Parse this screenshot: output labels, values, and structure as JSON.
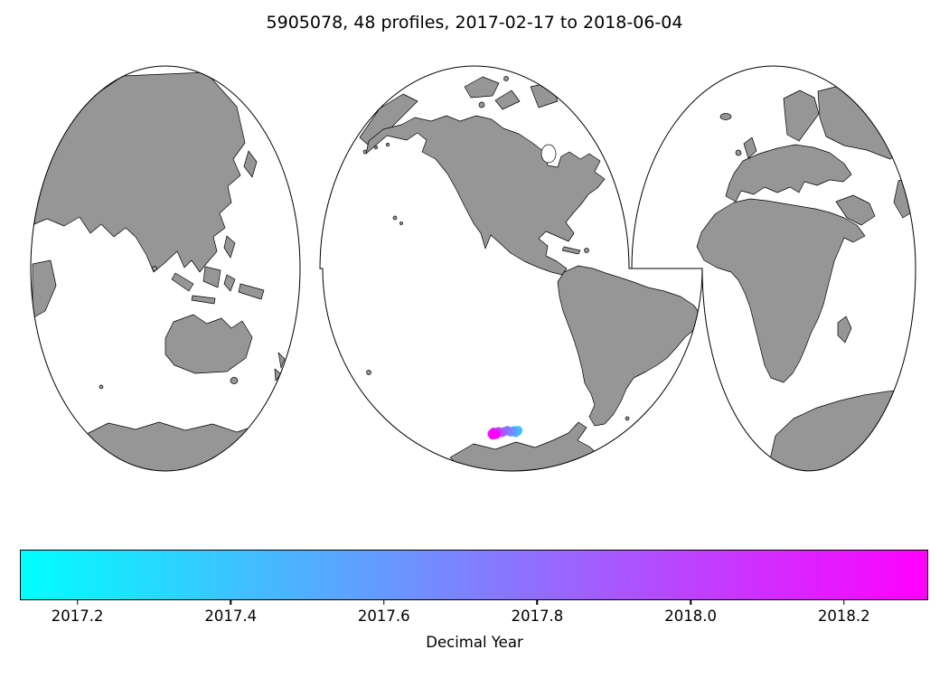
{
  "title": "5905078, 48 profiles, 2017-02-17 to 2018-06-04",
  "float": {
    "platform_id": "5905078",
    "profiles_count": "48",
    "date_start": "2017-02-17",
    "date_end": "2018-06-04"
  },
  "map": {
    "projection": "interrupted-mollweide-3-lobes",
    "land_color": "#969696",
    "coast_color": "#000000",
    "ocean_color": "#ffffff"
  },
  "colorbar": {
    "label": "Decimal Year",
    "colormap": "cool",
    "color_start": "#00ffff",
    "color_end": "#ff00ff",
    "tick_labels": [
      "2017.2",
      "2017.4",
      "2017.6",
      "2017.8",
      "2018.0",
      "2018.2"
    ]
  },
  "chart_data": {
    "type": "scatter",
    "title": "5905078, 48 profiles, 2017-02-17 to 2018-06-04",
    "colorbar_label": "Decimal Year",
    "colormap": "cool",
    "colorbar_ticks": [
      2017.2,
      2017.4,
      2017.6,
      2017.8,
      2018.0,
      2018.2
    ],
    "scale_range": [
      2017.125,
      2018.31
    ],
    "n_profiles": 48,
    "location_note": "All 48 profile positions form one tight cluster in the Southern Ocean west of the Antarctic Peninsula (approx. 63 S, 85 W); marker colors run cyan (early 2017) through blue-violet to magenta (mid 2018), with magenta (latest) points lying slightly west of the blue (earlier) points.",
    "points": [
      {
        "lon": -83.9,
        "lat": -62.95,
        "decimal_year": 2017.15
      },
      {
        "lon": -83.6,
        "lat": -62.85,
        "decimal_year": 2017.23
      },
      {
        "lon": -83.3,
        "lat": -62.95,
        "decimal_year": 2017.31
      },
      {
        "lon": -83.2,
        "lat": -62.85,
        "decimal_year": 2017.4
      },
      {
        "lon": -83.5,
        "lat": -63.05,
        "decimal_year": 2017.48
      },
      {
        "lon": -83.8,
        "lat": -62.9,
        "decimal_year": 2017.56
      },
      {
        "lon": -84.1,
        "lat": -63.0,
        "decimal_year": 2017.65
      },
      {
        "lon": -84.5,
        "lat": -62.85,
        "decimal_year": 2017.73
      },
      {
        "lon": -84.9,
        "lat": -62.95,
        "decimal_year": 2017.81
      },
      {
        "lon": -85.2,
        "lat": -63.05,
        "decimal_year": 2017.9
      },
      {
        "lon": -85.6,
        "lat": -62.95,
        "decimal_year": 2017.98
      },
      {
        "lon": -85.9,
        "lat": -63.1,
        "decimal_year": 2018.06
      },
      {
        "lon": -86.2,
        "lat": -63.0,
        "decimal_year": 2018.15
      },
      {
        "lon": -86.4,
        "lat": -63.15,
        "decimal_year": 2018.23
      },
      {
        "lon": -86.3,
        "lat": -63.25,
        "decimal_year": 2018.32
      },
      {
        "lon": -85.9,
        "lat": -63.2,
        "decimal_year": 2018.42
      }
    ]
  }
}
